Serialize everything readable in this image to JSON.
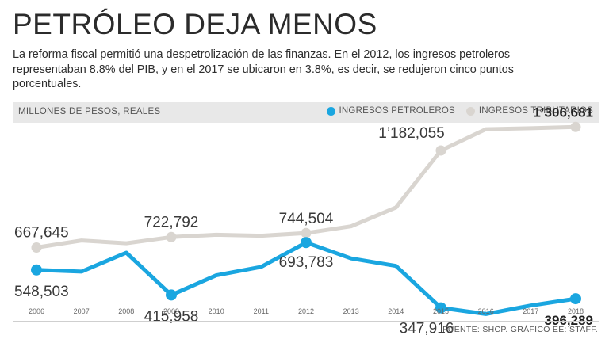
{
  "header": {
    "title": "PETRÓLEO DEJA MENOS",
    "subtitle": "La reforma fiscal permitió una despetrolización de las finanzas. En el 2012, los ingresos petroleros representaban 8.8% del PIB, y en el 2017 se ubicaron en 3.8%, es decir, se redujeron cinco puntos porcentuales."
  },
  "band": {
    "units_label": "MILLONES DE PESOS, REALES"
  },
  "legend": [
    {
      "label": "INGRESOS PETROLEROS",
      "color": "#1aa6e0"
    },
    {
      "label": "INGRESOS TRIBUTARIOS",
      "color": "#d9d5d0"
    }
  ],
  "footer": {
    "source": "FUENTE: SHCP.  GRÁFICO EE: STAFF."
  },
  "chart_data": {
    "type": "line",
    "title": "PETRÓLEO DEJA MENOS",
    "ylabel": "MILLONES DE PESOS, REALES",
    "categories": [
      "2006",
      "2007",
      "2008",
      "2009",
      "2010",
      "2011",
      "2012",
      "2013",
      "2014",
      "2015",
      "2016",
      "2017",
      "2018"
    ],
    "ylim": [
      300000,
      1350000
    ],
    "series": [
      {
        "name": "INGRESOS PETROLEROS",
        "color": "#1aa6e0",
        "values": [
          548503,
          540000,
          640000,
          415958,
          520000,
          565000,
          693783,
          610000,
          570000,
          347916,
          315000,
          360000,
          396289
        ]
      },
      {
        "name": "INGRESOS TRIBUTARIOS",
        "color": "#d9d5d0",
        "values": [
          667645,
          705000,
          690000,
          722792,
          735000,
          730000,
          744504,
          780000,
          880000,
          1182055,
          1295000,
          1300000,
          1306681
        ]
      }
    ],
    "markers": {
      "INGRESOS PETROLEROS": [
        0,
        3,
        6,
        9,
        12
      ],
      "INGRESOS TRIBUTARIOS": [
        0,
        3,
        6,
        9,
        12
      ]
    },
    "data_labels": [
      {
        "series": 1,
        "index": 0,
        "text": "667,645",
        "bold": false
      },
      {
        "series": 0,
        "index": 0,
        "text": "548,503",
        "bold": false
      },
      {
        "series": 1,
        "index": 3,
        "text": "722,792",
        "bold": false
      },
      {
        "series": 0,
        "index": 3,
        "text": "415,958",
        "bold": false
      },
      {
        "series": 1,
        "index": 6,
        "text": "744,504",
        "bold": false
      },
      {
        "series": 0,
        "index": 6,
        "text": "693,783",
        "bold": false
      },
      {
        "series": 1,
        "index": 9,
        "text": "1’182,055",
        "bold": false
      },
      {
        "series": 0,
        "index": 9,
        "text": "347,916",
        "bold": false
      },
      {
        "series": 1,
        "index": 12,
        "text": "1’306,681",
        "bold": true
      },
      {
        "series": 0,
        "index": 12,
        "text": "396,289",
        "bold": true
      }
    ]
  }
}
